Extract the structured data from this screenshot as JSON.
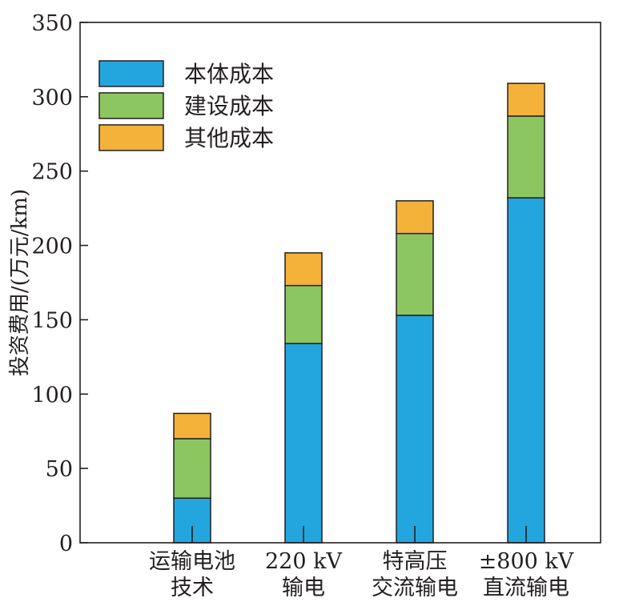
{
  "chart_data": {
    "type": "bar",
    "stacked": true,
    "title": "",
    "xlabel": "",
    "ylabel": "投资费用/(万元/km)",
    "ylim": [
      0,
      350
    ],
    "yticks": [
      0,
      50,
      100,
      150,
      200,
      250,
      300,
      350
    ],
    "grid": false,
    "legend_position": "top-left",
    "categories": [
      [
        "运输电池",
        "技术"
      ],
      [
        "220 kV",
        "输电"
      ],
      [
        "特高压",
        "交流输电"
      ],
      [
        "±800 kV",
        "直流输电"
      ]
    ],
    "series": [
      {
        "name": "本体成本",
        "color": "#23a6de",
        "values": [
          30,
          134,
          153,
          232
        ]
      },
      {
        "name": "建设成本",
        "color": "#8cc660",
        "values": [
          40,
          39,
          55,
          55
        ]
      },
      {
        "name": "其他成本",
        "color": "#f4b23a",
        "values": [
          17,
          22,
          22,
          22
        ]
      }
    ]
  }
}
